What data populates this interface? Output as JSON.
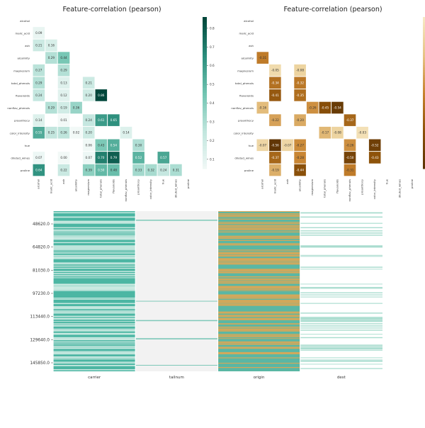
{
  "chart_data": [
    {
      "type": "heatmap",
      "title": "Feature-correlation (pearson)",
      "features": [
        "alcohol",
        "malic_acid",
        "ash",
        "alcalinity",
        "magnesium",
        "total_phenols",
        "flavanoids",
        "nonflav_phenols",
        "proanthocy",
        "color_intensity",
        "hue",
        "diluted_wines",
        "proline"
      ],
      "cells": [
        [
          "malic_acid",
          "alcohol",
          0.09
        ],
        [
          "ash",
          "alcohol",
          0.21
        ],
        [
          "ash",
          "malic_acid",
          0.16
        ],
        [
          "alcalinity",
          "malic_acid",
          0.29
        ],
        [
          "alcalinity",
          "ash",
          0.44
        ],
        [
          "magnesium",
          "alcohol",
          0.27
        ],
        [
          "magnesium",
          "ash",
          0.29
        ],
        [
          "total_phenols",
          "alcohol",
          0.29
        ],
        [
          "total_phenols",
          "ash",
          0.13
        ],
        [
          "total_phenols",
          "magnesium",
          0.21
        ],
        [
          "flavanoids",
          "alcohol",
          0.24
        ],
        [
          "flavanoids",
          "ash",
          0.12
        ],
        [
          "flavanoids",
          "magnesium",
          0.2
        ],
        [
          "flavanoids",
          "total_phenols",
          0.86
        ],
        [
          "nonflav_phenols",
          "malic_acid",
          0.29
        ],
        [
          "nonflav_phenols",
          "ash",
          0.19
        ],
        [
          "nonflav_phenols",
          "alcalinity",
          0.36
        ],
        [
          "proanthocy",
          "alcohol",
          0.14
        ],
        [
          "proanthocy",
          "ash",
          0.01
        ],
        [
          "proanthocy",
          "magnesium",
          0.24
        ],
        [
          "proanthocy",
          "total_phenols",
          0.61
        ],
        [
          "proanthocy",
          "flavanoids",
          0.65
        ],
        [
          "color_intensity",
          "alcohol",
          0.55
        ],
        [
          "color_intensity",
          "malic_acid",
          0.25
        ],
        [
          "color_intensity",
          "ash",
          0.26
        ],
        [
          "color_intensity",
          "alcalinity",
          0.02
        ],
        [
          "color_intensity",
          "magnesium",
          0.2
        ],
        [
          "color_intensity",
          "nonflav_phenols",
          0.14
        ],
        [
          "hue",
          "magnesium",
          0.06
        ],
        [
          "hue",
          "total_phenols",
          0.43
        ],
        [
          "hue",
          "flavanoids",
          0.54
        ],
        [
          "hue",
          "proanthocy",
          0.3
        ],
        [
          "diluted_wines",
          "alcohol",
          0.07
        ],
        [
          "diluted_wines",
          "ash",
          0.0
        ],
        [
          "diluted_wines",
          "magnesium",
          0.07
        ],
        [
          "diluted_wines",
          "total_phenols",
          0.7
        ],
        [
          "diluted_wines",
          "flavanoids",
          0.79
        ],
        [
          "diluted_wines",
          "proanthocy",
          0.52
        ],
        [
          "diluted_wines",
          "hue",
          0.57
        ],
        [
          "proline",
          "alcohol",
          0.64
        ],
        [
          "proline",
          "ash",
          0.22
        ],
        [
          "proline",
          "magnesium",
          0.39
        ],
        [
          "proline",
          "total_phenols",
          0.5
        ],
        [
          "proline",
          "flavanoids",
          0.48
        ],
        [
          "proline",
          "proanthocy",
          0.33
        ],
        [
          "proline",
          "color_intensity",
          0.32
        ],
        [
          "proline",
          "hue",
          0.24
        ],
        [
          "proline",
          "diluted_wines",
          0.31
        ]
      ],
      "colorbar": {
        "ticks": [
          0.1,
          0.2,
          0.3,
          0.4,
          0.5,
          0.6,
          0.7,
          0.8
        ],
        "labels": [
          "0.1",
          "0.2",
          "0.3",
          "0.4",
          "0.5",
          "0.6",
          "0.7",
          "0.8"
        ],
        "range": [
          0.05,
          0.86
        ]
      },
      "palette": [
        "#f2f9f7",
        "#c2e6de",
        "#72c5b2",
        "#2b8e7c",
        "#00463a"
      ]
    },
    {
      "type": "heatmap",
      "title": "Feature-correlation (pearson)",
      "features": [
        "alcohol",
        "malic_acid",
        "ash",
        "alcalinity",
        "magnesium",
        "total_phenols",
        "flavanoids",
        "nonflav_phenols",
        "proanthocy",
        "color_intensity",
        "hue",
        "diluted_wines",
        "proline"
      ],
      "cells": [
        [
          "alcalinity",
          "alcohol",
          -0.31
        ],
        [
          "magnesium",
          "malic_acid",
          -0.05
        ],
        [
          "magnesium",
          "alcalinity",
          -0.08
        ],
        [
          "total_phenols",
          "malic_acid",
          -0.34
        ],
        [
          "total_phenols",
          "alcalinity",
          -0.32
        ],
        [
          "flavanoids",
          "malic_acid",
          -0.41
        ],
        [
          "flavanoids",
          "alcalinity",
          -0.35
        ],
        [
          "nonflav_phenols",
          "alcohol",
          -0.16
        ],
        [
          "nonflav_phenols",
          "magnesium",
          -0.26
        ],
        [
          "nonflav_phenols",
          "total_phenols",
          -0.45
        ],
        [
          "nonflav_phenols",
          "flavanoids",
          -0.54
        ],
        [
          "proanthocy",
          "malic_acid",
          -0.22
        ],
        [
          "proanthocy",
          "alcalinity",
          -0.2
        ],
        [
          "proanthocy",
          "nonflav_phenols",
          -0.37
        ],
        [
          "color_intensity",
          "flavanoids",
          -0.08
        ],
        [
          "color_intensity",
          "total_phenols",
          -0.17
        ],
        [
          "color_intensity",
          "proanthocy",
          -0.03
        ],
        [
          "hue",
          "alcohol",
          -0.07
        ],
        [
          "hue",
          "malic_acid",
          -0.56
        ],
        [
          "hue",
          "ash",
          -0.07
        ],
        [
          "hue",
          "alcalinity",
          -0.27
        ],
        [
          "hue",
          "nonflav_phenols",
          -0.26
        ],
        [
          "hue",
          "color_intensity",
          -0.52
        ],
        [
          "diluted_wines",
          "malic_acid",
          -0.37
        ],
        [
          "diluted_wines",
          "alcalinity",
          -0.28
        ],
        [
          "diluted_wines",
          "nonflav_phenols",
          -0.5
        ],
        [
          "diluted_wines",
          "color_intensity",
          -0.43
        ],
        [
          "proline",
          "malic_acid",
          -0.19
        ],
        [
          "proline",
          "alcalinity",
          -0.44
        ],
        [
          "proline",
          "nonflav_phenols",
          -0.31
        ]
      ],
      "palette": [
        "#f6e8c3",
        "#e6c384",
        "#c7822e",
        "#8c510a",
        "#5a3205"
      ]
    },
    {
      "type": "heatmap",
      "description_kind": "missing-values matrix",
      "columns": [
        "carrier",
        "tailnum",
        "origin",
        "dest"
      ],
      "yticks": [
        "48620.0",
        "64820.0",
        "81030.0",
        "97230.0",
        "113440.0",
        "129640.0",
        "145850.0"
      ],
      "column_colors": {
        "carrier": [
          "#4cb6a3",
          "#c9e9e1"
        ],
        "tailnum": [
          "#f2f2f2",
          "#7fc9b9"
        ],
        "origin": [
          "#5ab7a4",
          "#d4a85a"
        ],
        "dest": [
          "#ffffff",
          "#a9dccf"
        ]
      },
      "column_densities": {
        "carrier": 0.55,
        "tailnum": 0.04,
        "origin": 0.5,
        "dest": 0.25
      }
    }
  ]
}
